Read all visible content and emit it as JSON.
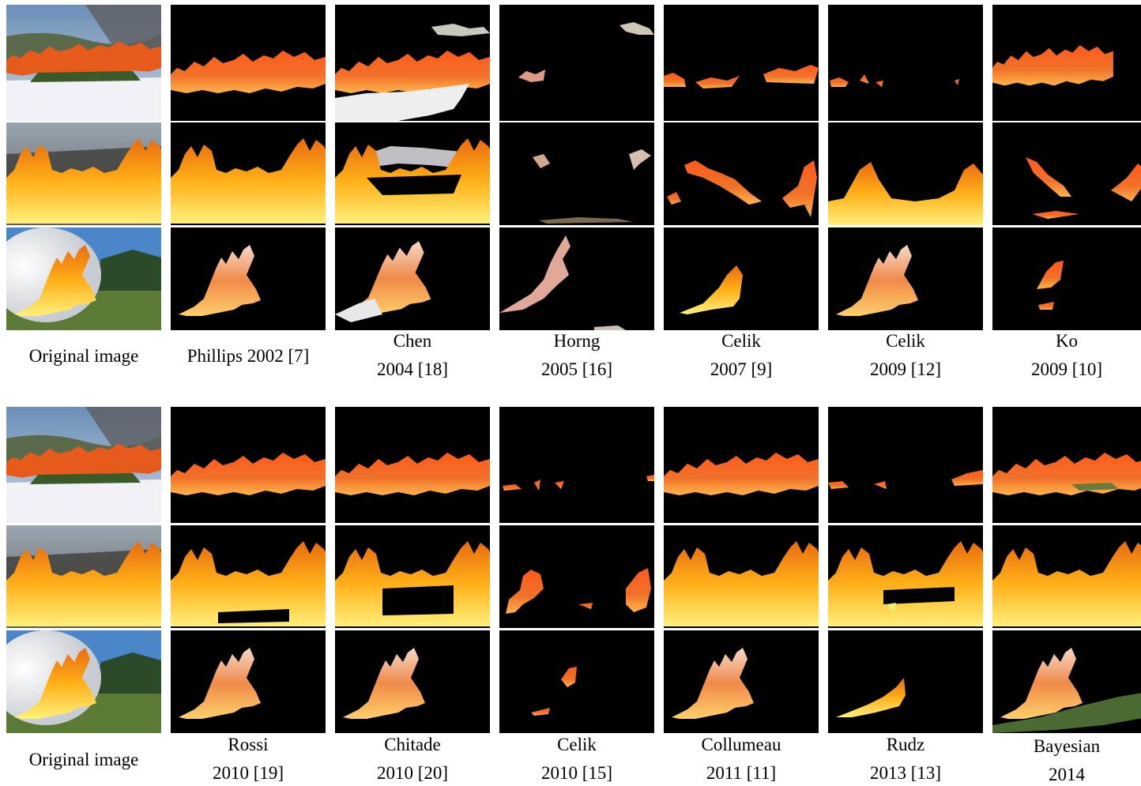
{
  "figure": {
    "panels": [
      {
        "id": "top",
        "original_caption": "Original image",
        "methods": [
          {
            "line1": "Phillips 2002 [7]",
            "line2": ""
          },
          {
            "line1": "Chen",
            "line2": "2004 [18]"
          },
          {
            "line1": "Horng",
            "line2": "2005 [16]"
          },
          {
            "line1": "Celik",
            "line2": "2007 [9]"
          },
          {
            "line1": "Celik",
            "line2": "2009 [12]"
          },
          {
            "line1": "Ko",
            "line2": "2009 [10]"
          }
        ]
      },
      {
        "id": "bottom",
        "original_caption": "Original image",
        "methods": [
          {
            "line1": "Rossi",
            "line2": "2010 [19]"
          },
          {
            "line1": "Chitade",
            "line2": "2010 [20]"
          },
          {
            "line1": "Celik",
            "line2": "2010 [15]"
          },
          {
            "line1": "Collumeau",
            "line2": "2011 [11]"
          },
          {
            "line1": "Rudz",
            "line2": "2013 [13]"
          },
          {
            "line1": "Bayesian",
            "line2": "2014"
          }
        ]
      }
    ]
  }
}
